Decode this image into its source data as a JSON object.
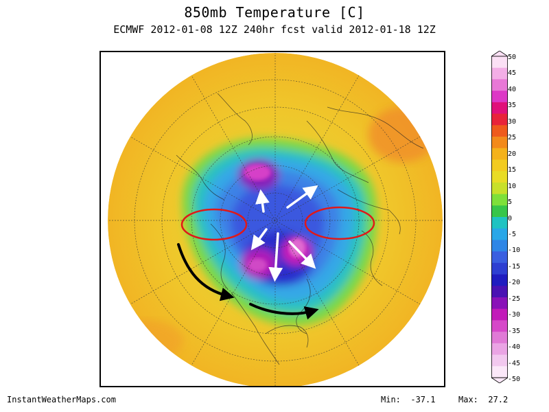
{
  "title": "850mb Temperature [C]",
  "subtitle": "ECMWF 2012-01-08 12Z 240hr fcst valid 2012-01-18 12Z",
  "colorbar": {
    "labels": [
      "50",
      "45",
      "40",
      "35",
      "30",
      "25",
      "20",
      "15",
      "10",
      "5",
      "0",
      "-5",
      "-10",
      "-15",
      "-20",
      "-25",
      "-30",
      "-35",
      "-40",
      "-45",
      "-50"
    ],
    "colors": [
      "#fbe0f5",
      "#f3aee6",
      "#e878d6",
      "#dd38c6",
      "#e0107a",
      "#e8233a",
      "#ef5a1c",
      "#f38a1b",
      "#f4b21c",
      "#f2cb20",
      "#e9dc25",
      "#c8e02a",
      "#7ee03a",
      "#37c64a",
      "#1fc3c2",
      "#28a7e8",
      "#2f86e6",
      "#3a5fe0",
      "#2e3fd2",
      "#201cc0",
      "#4a12b3",
      "#8a12b8",
      "#c21ab9",
      "#d648c9",
      "#e07ad6",
      "#eaa4e4",
      "#f2c8ef",
      "#fbe8f9"
    ]
  },
  "annotations": {
    "ellipse_color": "#e01818",
    "arrow_color_white": "#ffffff",
    "arrow_color_black": "#000000"
  },
  "footer": {
    "credit": "InstantWeatherMaps.com",
    "min_label": "Min:",
    "min_value": "-37.1",
    "max_label": "Max:",
    "max_value": "27.2"
  }
}
